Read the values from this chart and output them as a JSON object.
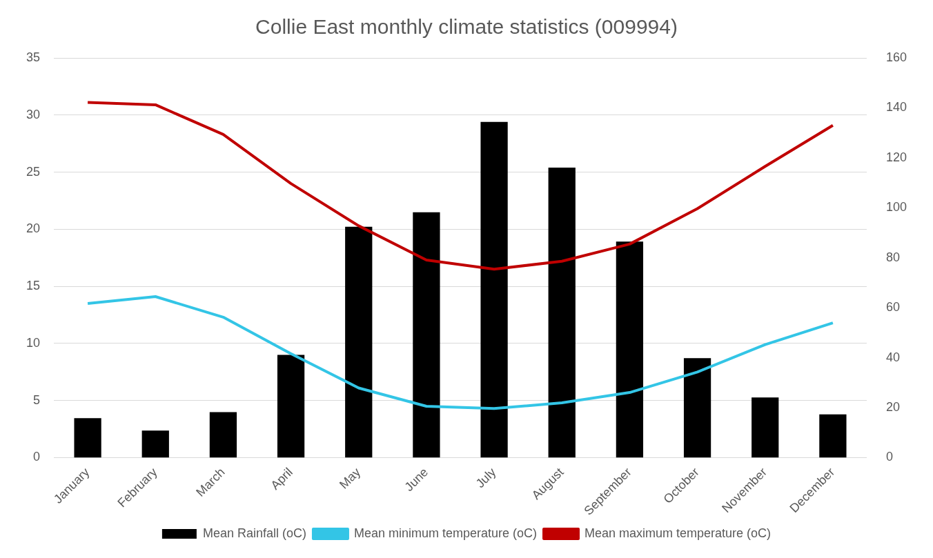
{
  "chart_data": {
    "type": "bar",
    "title": "Collie East monthly climate statistics (009994)",
    "categories": [
      "January",
      "February",
      "March",
      "April",
      "May",
      "June",
      "July",
      "August",
      "September",
      "October",
      "November",
      "December"
    ],
    "series": [
      {
        "name": "Mean Rainfall (oC)",
        "axis": "y2",
        "color": "#000000",
        "values": [
          15.8,
          10.8,
          18.2,
          41.1,
          92.4,
          98.2,
          134.4,
          116.1,
          86.5,
          39.8,
          24.1,
          17.3
        ]
      },
      {
        "name": "Mean minimum temperature (oC)",
        "type": "line",
        "color": "#33c5e6",
        "values": [
          13.5,
          14.1,
          12.3,
          9.1,
          6.1,
          4.5,
          4.3,
          4.8,
          5.7,
          7.5,
          9.9,
          11.8
        ]
      },
      {
        "name": "Mean maximum temperature (oC)",
        "type": "line",
        "color": "#c00000",
        "values": [
          31.1,
          30.9,
          28.3,
          24.0,
          20.3,
          17.3,
          16.5,
          17.2,
          18.7,
          21.8,
          25.5,
          29.1
        ]
      }
    ],
    "ylim": [
      0,
      35
    ],
    "yticks": [
      0,
      5,
      10,
      15,
      20,
      25,
      30,
      35
    ],
    "y2lim": [
      0,
      160
    ],
    "y2ticks": [
      0,
      20,
      40,
      60,
      80,
      100,
      120,
      140,
      160
    ],
    "grid": "y",
    "legend": "bottom",
    "marker": "none",
    "line_style": "solid"
  }
}
